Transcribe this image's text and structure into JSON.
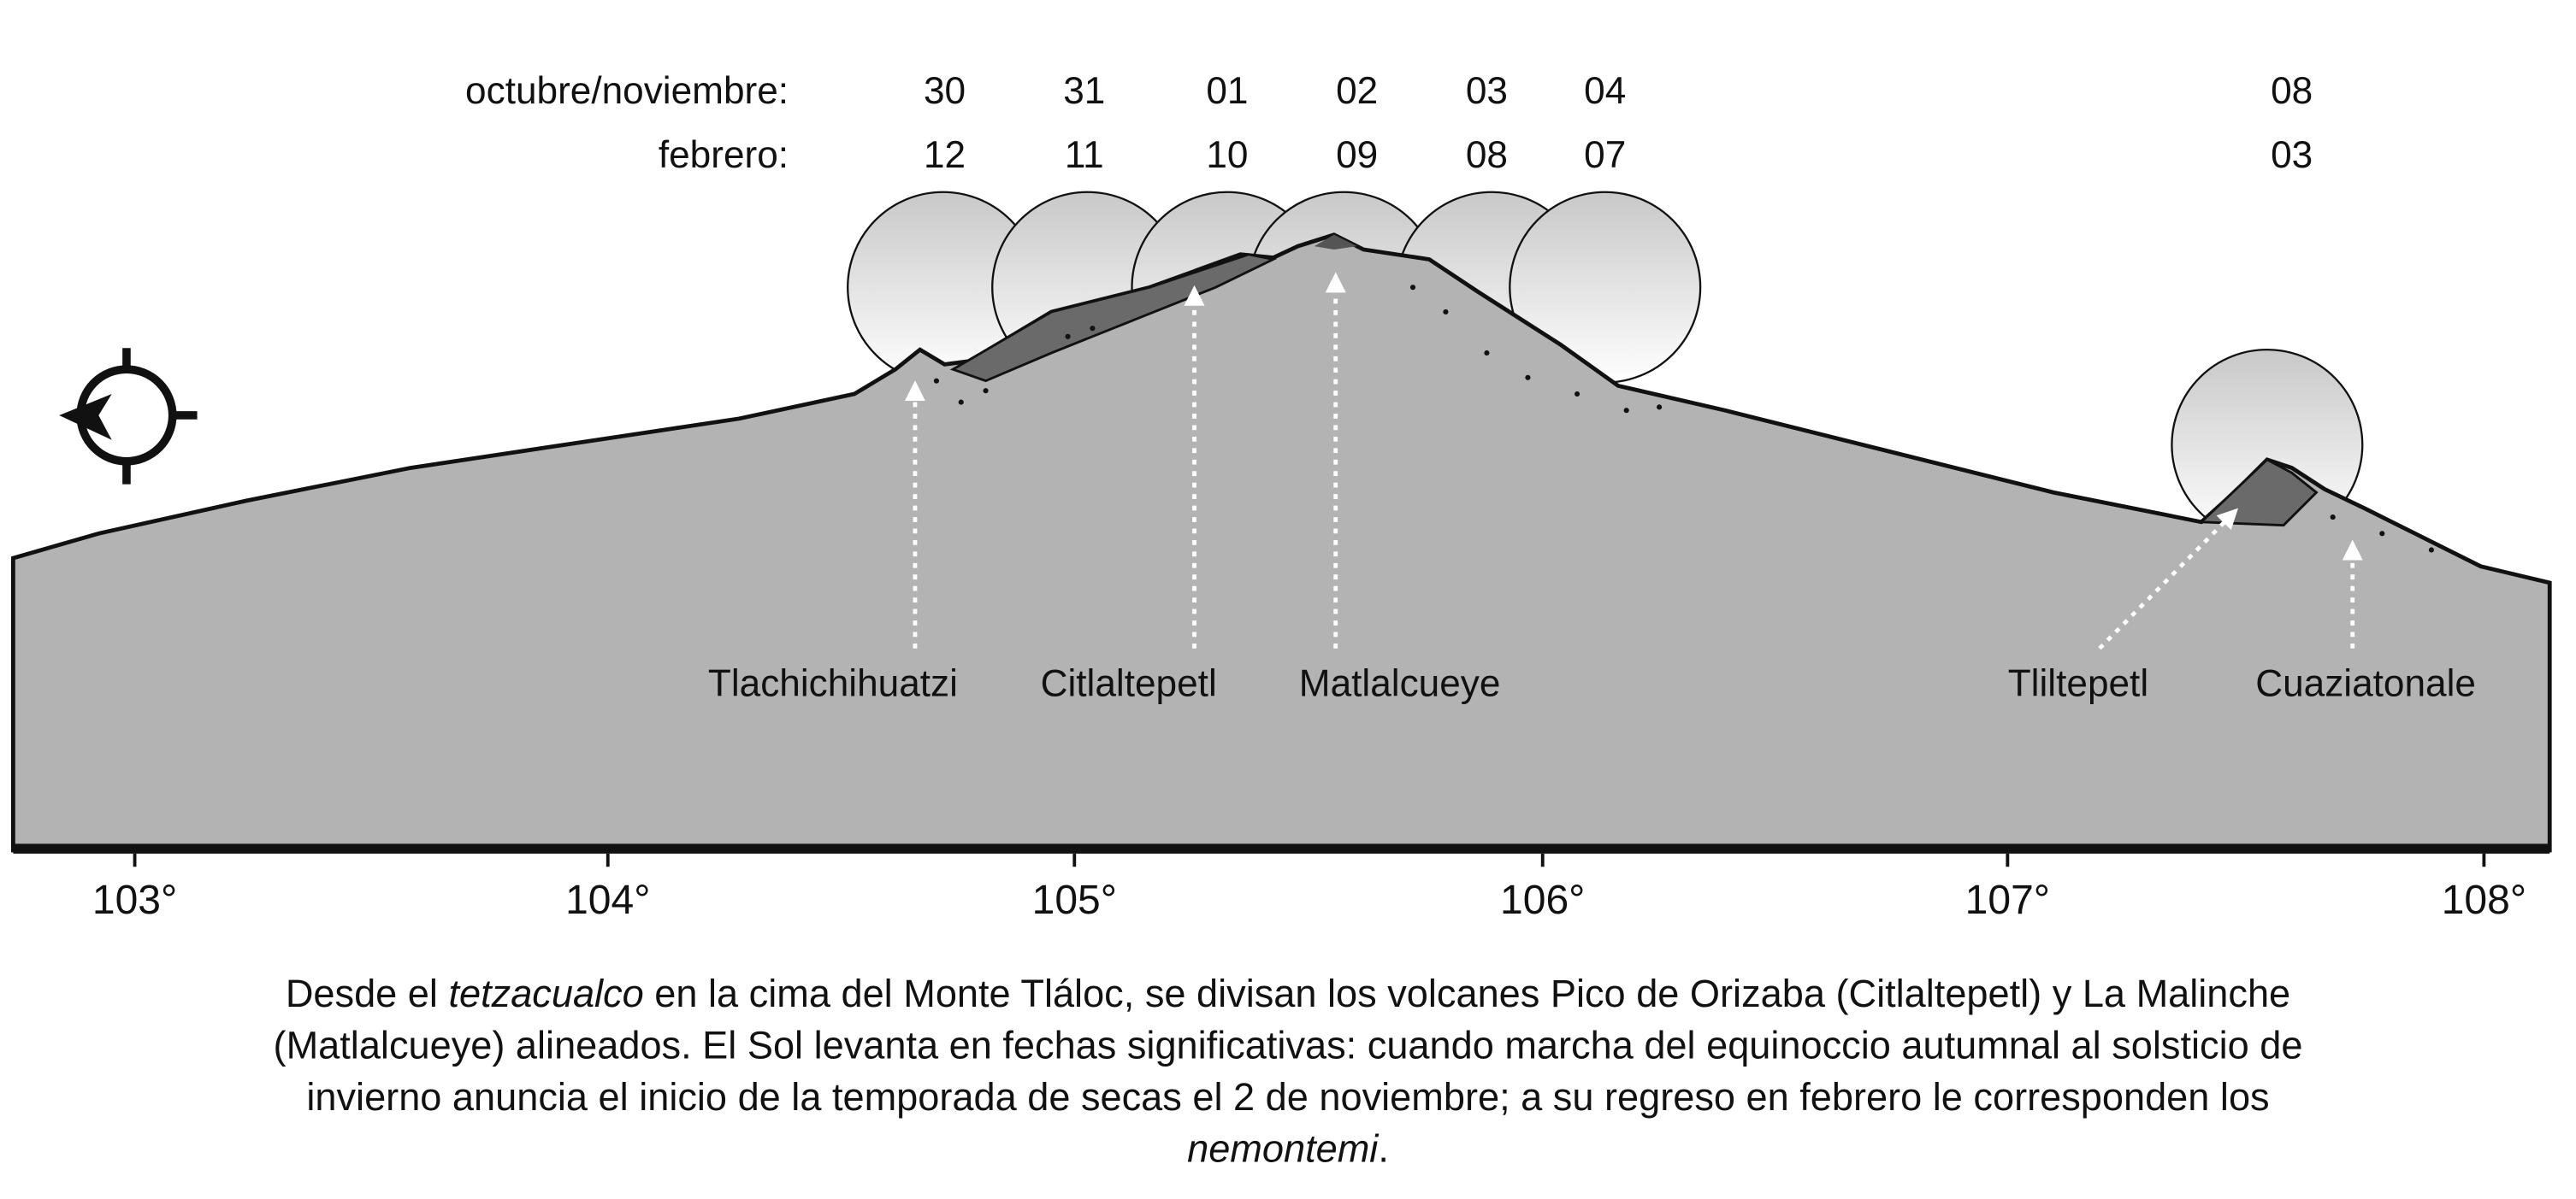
{
  "date_rows": [
    {
      "label": "octubre/noviembre:",
      "dates": [
        "30",
        "31",
        "01",
        "02",
        "03",
        "04",
        "08"
      ]
    },
    {
      "label": "febrero:",
      "dates": [
        "12",
        "11",
        "10",
        "09",
        "08",
        "07",
        "03"
      ]
    }
  ],
  "volcanoes": [
    "Tlachichihuatzi",
    "Citlaltepetl",
    "Matlalcueye",
    "Tliltepetl",
    "Cuaziatonale"
  ],
  "longitudes": [
    "103°",
    "104°",
    "105°",
    "106°",
    "107°",
    "108°"
  ],
  "caption": [
    [
      {
        "t": "Desde el "
      },
      {
        "t": "tetzacualco",
        "i": true
      },
      {
        "t": " en la cima del Monte Tláloc, se divisan los volcanes Pico de Orizaba (Citlaltepetl) y La Malinche"
      }
    ],
    [
      {
        "t": "(Matlalcueye) alineados. El Sol levanta en fechas significativas: cuando marcha del equinoccio autumnal al solsticio de"
      }
    ],
    [
      {
        "t": "invierno anuncia el inicio de la temporada de secas el 2 de noviembre; a su regreso en febrero le corresponden los"
      }
    ],
    [
      {
        "t": "nemontemi",
        "i": true
      },
      {
        "t": "."
      }
    ]
  ]
}
